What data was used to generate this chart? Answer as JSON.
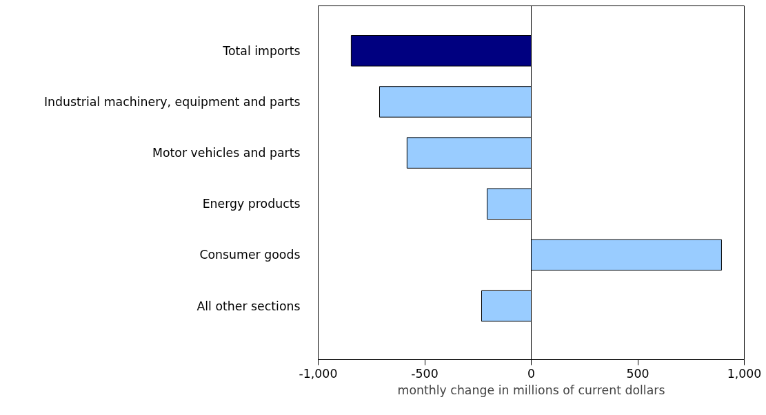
{
  "chart_data": {
    "type": "bar",
    "orientation": "horizontal",
    "categories": [
      "Total imports",
      "Industrial machinery, equipment and parts",
      "Motor vehicles and parts",
      "Energy products",
      "Consumer goods",
      "All other sections"
    ],
    "values": [
      -845,
      -712,
      -583,
      -207,
      893,
      -233
    ],
    "colors": [
      "#000080",
      "#99ccff",
      "#99ccff",
      "#99ccff",
      "#99ccff",
      "#99ccff"
    ],
    "xlabel": "monthly change in millions of current dollars",
    "xlim": [
      -1000,
      1000
    ],
    "xticks": [
      {
        "value": -1000,
        "label": "-1,000"
      },
      {
        "value": -500,
        "label": "-500"
      },
      0,
      500,
      {
        "value": 1000,
        "label": "1,000"
      }
    ],
    "ref_lines": [
      {
        "axis": "x",
        "value": 0,
        "color": "#000000"
      }
    ],
    "grid": false
  }
}
